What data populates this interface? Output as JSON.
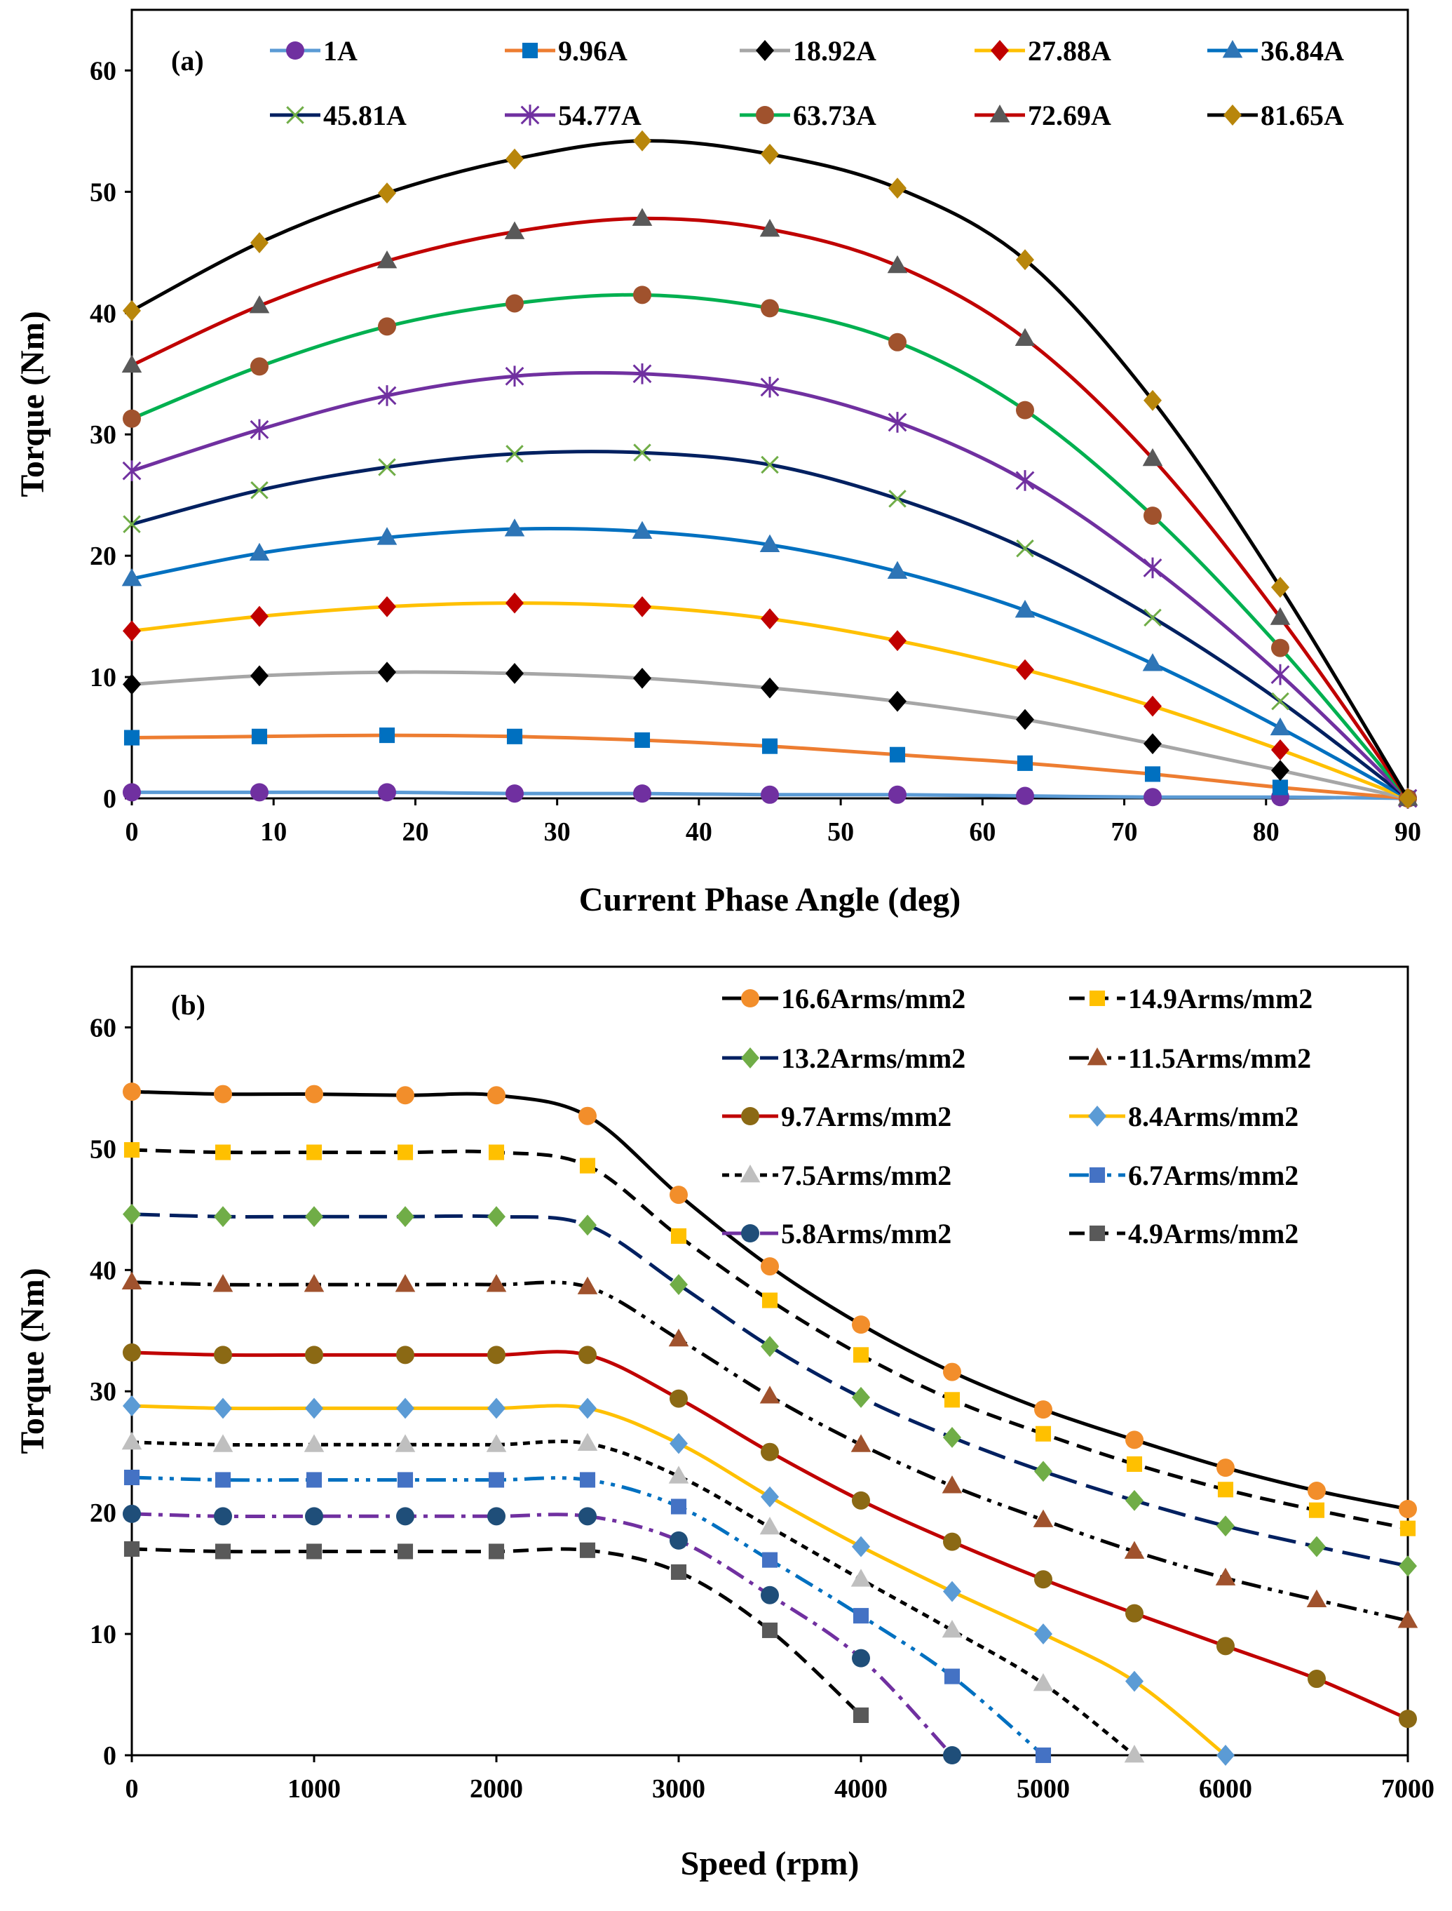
{
  "chart_data": [
    {
      "type": "line",
      "panel_label": "(a)",
      "xlabel": "Current Phase Angle (deg)",
      "ylabel": "Torque (Nm)",
      "xlim": [
        0,
        90
      ],
      "ylim": [
        0,
        65
      ],
      "x_ticks": [
        0,
        10,
        20,
        30,
        40,
        50,
        60,
        70,
        80,
        90
      ],
      "y_ticks": [
        0,
        10,
        20,
        30,
        40,
        50,
        60
      ],
      "x": [
        0,
        9,
        18,
        27,
        36,
        45,
        54,
        63,
        72,
        81,
        90
      ],
      "legend_position": "top",
      "series": [
        {
          "name": "1A",
          "line_color": "#5b9bd5",
          "marker_color": "#7030a0",
          "marker": "circle",
          "values": [
            0.5,
            0.5,
            0.5,
            0.4,
            0.4,
            0.3,
            0.3,
            0.2,
            0.1,
            0.1,
            0
          ]
        },
        {
          "name": "9.96A",
          "line_color": "#ed7d31",
          "marker_color": "#0070c0",
          "marker": "square",
          "values": [
            5.0,
            5.1,
            5.2,
            5.1,
            4.8,
            4.3,
            3.6,
            2.9,
            2.0,
            0.9,
            0
          ]
        },
        {
          "name": "18.92A",
          "line_color": "#a6a6a6",
          "marker_color": "#000000",
          "marker": "diamond",
          "values": [
            9.4,
            10.1,
            10.4,
            10.3,
            9.9,
            9.1,
            8.0,
            6.5,
            4.5,
            2.3,
            0
          ]
        },
        {
          "name": "27.88A",
          "line_color": "#ffc000",
          "marker_color": "#c00000",
          "marker": "diamond",
          "values": [
            13.8,
            15.0,
            15.8,
            16.1,
            15.8,
            14.8,
            13.0,
            10.6,
            7.6,
            4.0,
            0
          ]
        },
        {
          "name": "36.84A",
          "line_color": "#0070c0",
          "marker_color": "#2e75b6",
          "marker": "triangle",
          "values": [
            18.1,
            20.2,
            21.5,
            22.2,
            22.0,
            20.9,
            18.7,
            15.5,
            11.1,
            5.8,
            0
          ]
        },
        {
          "name": "45.81A",
          "line_color": "#002060",
          "marker_color": "#70ad47",
          "marker": "x",
          "values": [
            22.6,
            25.4,
            27.3,
            28.4,
            28.5,
            27.5,
            24.7,
            20.6,
            14.9,
            8.0,
            0
          ]
        },
        {
          "name": "54.77A",
          "line_color": "#7030a0",
          "marker_color": "#7030a0",
          "marker": "star",
          "values": [
            27.0,
            30.4,
            33.2,
            34.8,
            35.0,
            33.9,
            31.0,
            26.2,
            19.0,
            10.2,
            0
          ]
        },
        {
          "name": "63.73A",
          "line_color": "#00b050",
          "marker_color": "#a0522d",
          "marker": "circle",
          "values": [
            31.3,
            35.6,
            38.9,
            40.8,
            41.5,
            40.4,
            37.6,
            32.0,
            23.3,
            12.4,
            0
          ]
        },
        {
          "name": "72.69A",
          "line_color": "#c00000",
          "marker_color": "#595959",
          "marker": "triangle",
          "values": [
            35.7,
            40.6,
            44.3,
            46.7,
            47.8,
            46.9,
            43.9,
            37.9,
            28.0,
            14.9,
            0
          ]
        },
        {
          "name": "81.65A",
          "line_color": "#000000",
          "marker_color": "#b8860b",
          "marker": "diamond",
          "values": [
            40.2,
            45.8,
            49.9,
            52.7,
            54.2,
            53.1,
            50.3,
            44.4,
            32.8,
            17.4,
            0
          ]
        }
      ]
    },
    {
      "type": "line",
      "panel_label": "(b)",
      "xlabel": "Speed (rpm)",
      "ylabel": "Torque (Nm)",
      "xlim": [
        0,
        7000
      ],
      "ylim": [
        0,
        65
      ],
      "x_ticks": [
        0,
        1000,
        2000,
        3000,
        4000,
        5000,
        6000,
        7000
      ],
      "y_ticks": [
        0,
        10,
        20,
        30,
        40,
        50,
        60
      ],
      "legend_position": "top-right",
      "series": [
        {
          "name": "16.6Arms/mm2",
          "line_color": "#000000",
          "dash": "solid",
          "marker_color": "#f28e2b",
          "marker": "circle",
          "x": [
            0,
            500,
            1000,
            1500,
            2000,
            2500,
            3000,
            3500,
            4000,
            4500,
            5000,
            5500,
            6000,
            6500,
            7000
          ],
          "values": [
            54.7,
            54.5,
            54.5,
            54.4,
            54.4,
            52.7,
            46.2,
            40.3,
            35.5,
            31.6,
            28.5,
            26.0,
            23.7,
            21.8,
            20.3
          ]
        },
        {
          "name": "14.9Arms/mm2",
          "line_color": "#000000",
          "dash": "dash",
          "marker_color": "#ffc000",
          "marker": "square",
          "x": [
            0,
            500,
            1000,
            1500,
            2000,
            2500,
            3000,
            3500,
            4000,
            4500,
            5000,
            5500,
            6000,
            6500,
            7000
          ],
          "values": [
            49.9,
            49.7,
            49.7,
            49.7,
            49.7,
            48.6,
            42.8,
            37.5,
            33.0,
            29.3,
            26.5,
            24.0,
            21.9,
            20.2,
            18.7
          ]
        },
        {
          "name": "13.2Arms/mm2",
          "line_color": "#002060",
          "dash": "longdash",
          "marker_color": "#70ad47",
          "marker": "diamond",
          "x": [
            0,
            500,
            1000,
            1500,
            2000,
            2500,
            3000,
            3500,
            4000,
            4500,
            5000,
            5500,
            6000,
            6500,
            7000
          ],
          "values": [
            44.6,
            44.4,
            44.4,
            44.4,
            44.4,
            43.7,
            38.8,
            33.7,
            29.5,
            26.2,
            23.4,
            21.0,
            18.9,
            17.2,
            15.6
          ]
        },
        {
          "name": "11.5Arms/mm2",
          "line_color": "#000000",
          "dash": "dashdotdot",
          "marker_color": "#a0522d",
          "marker": "triangle",
          "x": [
            0,
            500,
            1000,
            1500,
            2000,
            2500,
            3000,
            3500,
            4000,
            4500,
            5000,
            5500,
            6000,
            6500,
            7000
          ],
          "values": [
            39.0,
            38.8,
            38.8,
            38.8,
            38.8,
            38.6,
            34.3,
            29.6,
            25.6,
            22.2,
            19.4,
            16.8,
            14.6,
            12.8,
            11.1
          ]
        },
        {
          "name": "9.7Arms/mm2",
          "line_color": "#c00000",
          "dash": "solid",
          "marker_color": "#8b6914",
          "marker": "circle",
          "x": [
            0,
            500,
            1000,
            1500,
            2000,
            2500,
            3000,
            3500,
            4000,
            4500,
            5000,
            5500,
            6000,
            6500,
            7000
          ],
          "values": [
            33.2,
            33.0,
            33.0,
            33.0,
            33.0,
            33.0,
            29.4,
            25.0,
            21.0,
            17.6,
            14.5,
            11.7,
            9.0,
            6.3,
            3.0
          ]
        },
        {
          "name": "8.4Arms/mm2",
          "line_color": "#ffc000",
          "dash": "solid",
          "marker_color": "#5b9bd5",
          "marker": "diamond",
          "x": [
            0,
            500,
            1000,
            1500,
            2000,
            2500,
            3000,
            3500,
            4000,
            4500,
            5000,
            5500,
            6000
          ],
          "values": [
            28.8,
            28.6,
            28.6,
            28.6,
            28.6,
            28.6,
            25.7,
            21.3,
            17.2,
            13.5,
            10.0,
            6.1,
            0
          ]
        },
        {
          "name": "7.5Arms/mm2",
          "line_color": "#000000",
          "dash": "dot",
          "marker_color": "#bfbfbf",
          "marker": "triangle",
          "x": [
            0,
            500,
            1000,
            1500,
            2000,
            2500,
            3000,
            3500,
            4000,
            4500,
            5000,
            5500
          ],
          "values": [
            25.8,
            25.6,
            25.6,
            25.6,
            25.6,
            25.7,
            23.0,
            18.8,
            14.5,
            10.3,
            5.9,
            0
          ]
        },
        {
          "name": "6.7Arms/mm2",
          "line_color": "#0070c0",
          "dash": "dashdotdot",
          "marker_color": "#4472c4",
          "marker": "square",
          "x": [
            0,
            500,
            1000,
            1500,
            2000,
            2500,
            3000,
            3500,
            4000,
            4500,
            5000
          ],
          "values": [
            22.9,
            22.7,
            22.7,
            22.7,
            22.7,
            22.7,
            20.5,
            16.1,
            11.5,
            6.5,
            0
          ]
        },
        {
          "name": "5.8Arms/mm2",
          "line_color": "#7030a0",
          "dash": "dashdot",
          "marker_color": "#1f4e79",
          "marker": "circle",
          "x": [
            0,
            500,
            1000,
            1500,
            2000,
            2500,
            3000,
            3500,
            4000,
            4500
          ],
          "values": [
            19.9,
            19.7,
            19.7,
            19.7,
            19.7,
            19.7,
            17.7,
            13.2,
            8.0,
            0
          ]
        },
        {
          "name": "4.9Arms/mm2",
          "line_color": "#000000",
          "dash": "dash",
          "marker_color": "#595959",
          "marker": "square",
          "x": [
            0,
            500,
            1000,
            1500,
            2000,
            2500,
            3000,
            3500,
            4000
          ],
          "values": [
            17.0,
            16.8,
            16.8,
            16.8,
            16.8,
            16.9,
            15.1,
            10.3,
            3.3
          ]
        }
      ]
    }
  ]
}
